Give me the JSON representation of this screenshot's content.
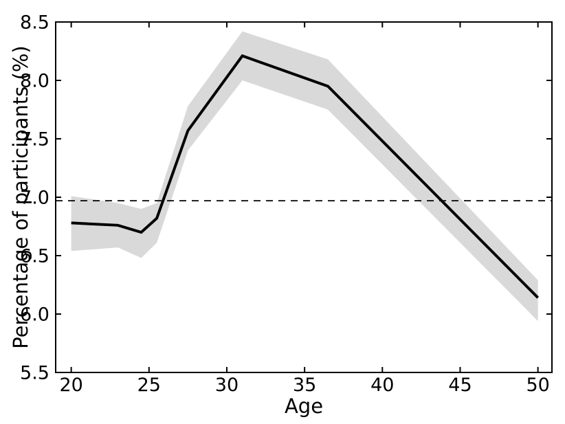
{
  "chart_data": {
    "type": "line",
    "title": "",
    "xlabel": "Age",
    "ylabel": "Percentage of participants (%)",
    "x": [
      20,
      23,
      24.5,
      25.5,
      27.5,
      31,
      36.5,
      50
    ],
    "series": [
      {
        "name": "percentage-of-participants",
        "values": [
          6.78,
          6.76,
          6.7,
          6.82,
          7.57,
          8.21,
          7.95,
          6.14
        ],
        "color": "#000000",
        "line_width": 4
      }
    ],
    "band": {
      "name": "confidence-band",
      "upper": [
        7.01,
        6.95,
        6.9,
        6.95,
        7.78,
        8.42,
        8.18,
        6.29
      ],
      "lower": [
        6.54,
        6.57,
        6.48,
        6.61,
        7.4,
        8.0,
        7.75,
        5.94
      ],
      "color": "#d9d9d9"
    },
    "reference_line": {
      "name": "overall-mean",
      "value": 6.97,
      "style": "dashed",
      "color": "#000000"
    },
    "xlim": [
      19.0,
      50.9
    ],
    "ylim": [
      5.5,
      8.5
    ],
    "xticks": [
      20,
      25,
      30,
      35,
      40,
      45,
      50
    ],
    "yticks": [
      5.5,
      6.0,
      6.5,
      7.0,
      7.5,
      8.0,
      8.5
    ],
    "ytick_decimals": 1,
    "grid": false,
    "legend": null,
    "frame_color": "#000000"
  }
}
